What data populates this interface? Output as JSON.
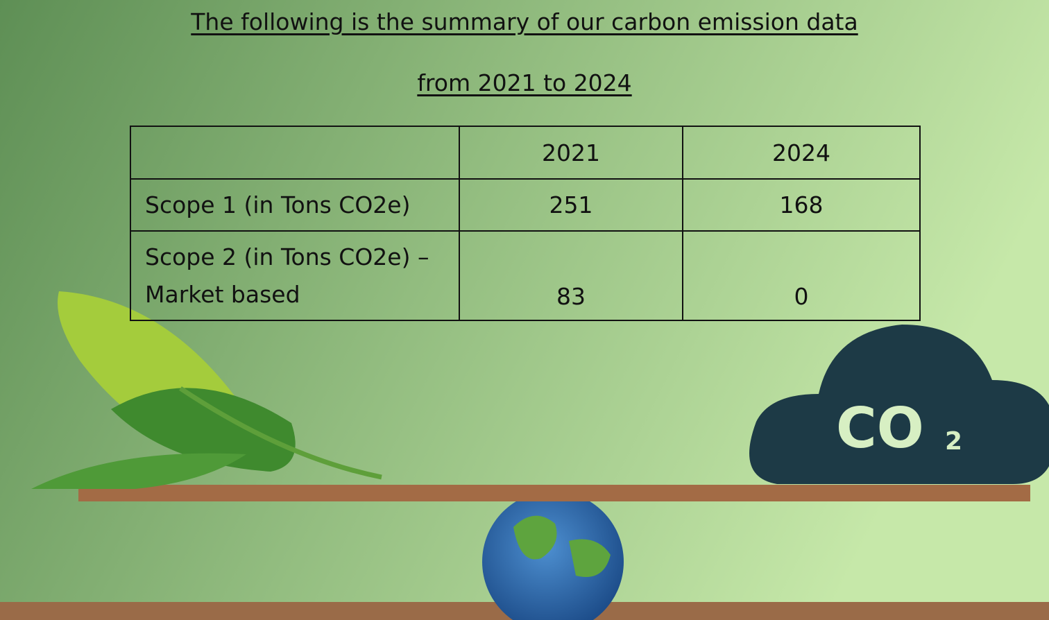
{
  "header": {
    "title_line_1": "The following is the summary of our carbon emission data",
    "title_line_2": "from 2021 to 2024"
  },
  "table": {
    "columns": [
      "2021",
      "2024"
    ],
    "rows": [
      [
        "Scope 1 (in Tons CO2e)",
        251,
        168
      ],
      [
        "Scope 2 (in Tons CO2e) – Market based",
        83,
        0
      ]
    ]
  },
  "illustration": {
    "cloud_label": "CO",
    "cloud_label_subscript": "2"
  }
}
